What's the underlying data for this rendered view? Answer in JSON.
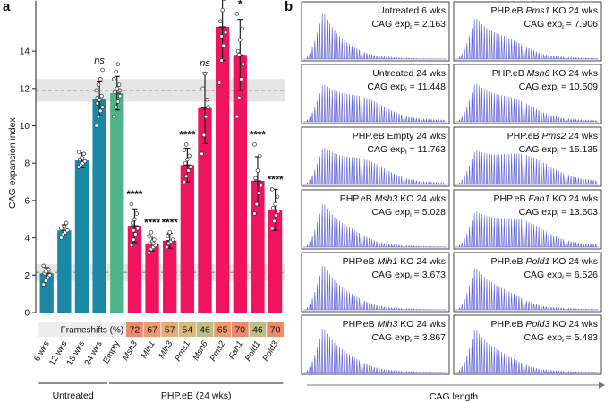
{
  "panels": {
    "a": "a",
    "b": "b"
  },
  "chart_data": [
    {
      "type": "bar",
      "title": "",
      "xlabel": "",
      "ylabel": "CAG expansion index",
      "ylim": [
        0,
        16
      ],
      "yticks": [
        0,
        2,
        4,
        6,
        8,
        10,
        12,
        14
      ],
      "grid": false,
      "categories": [
        "6 wks",
        "12 wks",
        "18 wks",
        "24 wks",
        "Empty",
        "Msh3",
        "Mlh1",
        "Mlh3",
        "Pms1",
        "Msh6",
        "Pms2",
        "Fan1",
        "Pold1",
        "Pold3"
      ],
      "italic_categories": [
        false,
        false,
        false,
        false,
        false,
        true,
        true,
        true,
        true,
        true,
        true,
        true,
        true,
        true
      ],
      "values": [
        2.1,
        4.4,
        8.15,
        11.45,
        11.75,
        4.65,
        3.7,
        3.85,
        7.9,
        10.95,
        15.3,
        13.8,
        7.05,
        5.5
      ],
      "errors": [
        0.3,
        0.3,
        0.4,
        0.9,
        0.9,
        0.9,
        0.4,
        0.4,
        0.9,
        1.9,
        1.8,
        1.9,
        1.3,
        1.1
      ],
      "points": [
        [
          1.5,
          1.7,
          1.9,
          2.0,
          2.1,
          2.2,
          2.3,
          2.5,
          2.2
        ],
        [
          4.0,
          4.2,
          4.3,
          4.4,
          4.5,
          4.6,
          4.8,
          4.5
        ],
        [
          7.8,
          7.9,
          8.0,
          8.1,
          8.2,
          8.3,
          8.5,
          8.6
        ],
        [
          10.0,
          10.5,
          10.8,
          11.0,
          11.2,
          11.4,
          11.6,
          11.9,
          12.2,
          12.5,
          13.0,
          11.5
        ],
        [
          10.5,
          11.0,
          11.3,
          11.6,
          11.8,
          12.0,
          12.2,
          12.5,
          12.9,
          13.3,
          11.9
        ],
        [
          3.6,
          3.9,
          4.2,
          4.5,
          4.8,
          5.0,
          5.3,
          5.8,
          4.4
        ],
        [
          3.2,
          3.4,
          3.5,
          3.6,
          3.7,
          3.8,
          3.9,
          4.1,
          4.3,
          3.7
        ],
        [
          3.5,
          3.7,
          3.8,
          3.9,
          4.1,
          4.3
        ],
        [
          7.0,
          7.3,
          7.6,
          7.8,
          8.0,
          8.2,
          8.4,
          8.7,
          9.0
        ],
        [
          8.5,
          9.5,
          10.5,
          11.0,
          12.0,
          12.8,
          11.4
        ],
        [
          12.3,
          13.5,
          14.3,
          15.0,
          15.6,
          16.2,
          16.8,
          17.3,
          14.8
        ],
        [
          10.5,
          11.5,
          12.5,
          13.3,
          14.0,
          14.6,
          15.2,
          16.0,
          13.8
        ],
        [
          5.3,
          5.8,
          6.4,
          6.8,
          7.2,
          7.6,
          8.4,
          9.0
        ],
        [
          4.5,
          4.9,
          5.2,
          5.4,
          5.6,
          5.8,
          6.2,
          6.6
        ]
      ],
      "bar_colors": [
        "#1b88a5",
        "#1b88a5",
        "#1b88a5",
        "#1b88a5",
        "#4db48a",
        "#f0145f",
        "#f0145f",
        "#f0145f",
        "#f0145f",
        "#f0145f",
        "#f0145f",
        "#f0145f",
        "#f0145f",
        "#f0145f"
      ],
      "significance": [
        {
          "category": "24 wks",
          "label": "ns",
          "italic": true
        },
        {
          "category": "Msh3",
          "label": "****",
          "italic": false
        },
        {
          "category": "Mlh1",
          "label": "****",
          "italic": false
        },
        {
          "category": "Mlh3",
          "label": "****",
          "italic": false
        },
        {
          "category": "Pms1",
          "label": "****",
          "italic": false
        },
        {
          "category": "Msh6",
          "label": "ns",
          "italic": true
        },
        {
          "category": "Pms2",
          "label": "****",
          "italic": false
        },
        {
          "category": "Fan1",
          "label": "*",
          "italic": false
        },
        {
          "category": "Pold1",
          "label": "****",
          "italic": false
        },
        {
          "category": "Pold3",
          "label": "****",
          "italic": false
        }
      ],
      "reference_bands": [
        {
          "center": 2.15,
          "low": 1.7,
          "high": 2.6
        },
        {
          "center": 11.9,
          "low": 11.3,
          "high": 12.5
        }
      ],
      "frameshifts": {
        "label": "Frameshifts (%)",
        "values": [
          {
            "category": "Msh3",
            "value": "72",
            "color": "#ee8a6c"
          },
          {
            "category": "Mlh1",
            "value": "67",
            "color": "#eb9a70"
          },
          {
            "category": "Mlh3",
            "value": "57",
            "color": "#e4ae72"
          },
          {
            "category": "Pms1",
            "value": "54",
            "color": "#dcb978"
          },
          {
            "category": "Msh6",
            "value": "46",
            "color": "#bcbe82"
          },
          {
            "category": "Pms2",
            "value": "65",
            "color": "#eb9a70"
          },
          {
            "category": "Fan1",
            "value": "70",
            "color": "#ee8a6c"
          },
          {
            "category": "Pold1",
            "value": "46",
            "color": "#bcbe82"
          },
          {
            "category": "Pold3",
            "value": "70",
            "color": "#ee8a6c"
          }
        ]
      },
      "groups": [
        {
          "label": "Untreated",
          "from": "6 wks",
          "to": "24 wks"
        },
        {
          "label": "PHP.eB (24 wks)",
          "from": "Empty",
          "to": "Pold3"
        }
      ]
    },
    {
      "type": "bar",
      "xlabel": "CAG length",
      "plots": [
        {
          "title_pre": "Untreated 6 wks",
          "title_gene": "",
          "title_post": "",
          "metric_label": "CAG exp",
          "metric_sub": "i",
          "metric_value": "2.163"
        },
        {
          "title_pre": "PHP.eB ",
          "title_gene": "Pms1",
          "title_post": " KO 24 wks",
          "metric_label": "CAG exp",
          "metric_sub": "i",
          "metric_value": "7.906"
        },
        {
          "title_pre": "Untreated 24 wks",
          "title_gene": "",
          "title_post": "",
          "metric_label": "CAG exp",
          "metric_sub": "i",
          "metric_value": "11.448"
        },
        {
          "title_pre": "PHP.eB ",
          "title_gene": "Msh6",
          "title_post": " KO 24 wks",
          "metric_label": "CAG exp",
          "metric_sub": "i",
          "metric_value": "10.509"
        },
        {
          "title_pre": "PHP.eB Empty 24 wks",
          "title_gene": "",
          "title_post": "",
          "metric_label": "CAG exp",
          "metric_sub": "i",
          "metric_value": "11.763"
        },
        {
          "title_pre": "PHP.eB ",
          "title_gene": "Pms2",
          "title_post": " 24 wks",
          "metric_label": "CAG exp",
          "metric_sub": "i",
          "metric_value": "15.135"
        },
        {
          "title_pre": "PHP.eB ",
          "title_gene": "Msh3",
          "title_post": " KO 24 wks",
          "metric_label": "CAG exp",
          "metric_sub": "i",
          "metric_value": "5.028"
        },
        {
          "title_pre": "PHP.eB ",
          "title_gene": "Fan1",
          "title_post": " KO 24 wks",
          "metric_label": "CAG exp",
          "metric_sub": "i",
          "metric_value": "13.603"
        },
        {
          "title_pre": "PHP.eB ",
          "title_gene": "Mlh1",
          "title_post": " KO 24 wks",
          "metric_label": "CAG exp",
          "metric_sub": "i",
          "metric_value": "3.673"
        },
        {
          "title_pre": "PHP.eB ",
          "title_gene": "Pold1",
          "title_post": " KO 24 wks",
          "metric_label": "CAG exp",
          "metric_sub": "i",
          "metric_value": "6.526"
        },
        {
          "title_pre": "PHP.eB ",
          "title_gene": "Mlh3",
          "title_post": " KO 24 wks",
          "metric_label": "CAG exp",
          "metric_sub": "i",
          "metric_value": "3.867"
        },
        {
          "title_pre": "PHP.eB ",
          "title_gene": "Pold3",
          "title_post": " KO 24 wks",
          "metric_label": "CAG exp",
          "metric_sub": "i",
          "metric_value": "5.483"
        }
      ]
    }
  ],
  "colors": {
    "untreated": "#1b88a5",
    "empty": "#4db48a",
    "knockout": "#f0145f",
    "band": "#dcdcdc",
    "trace": "#5b5bd6",
    "frameshift_row_bg": "#eeeeee"
  }
}
